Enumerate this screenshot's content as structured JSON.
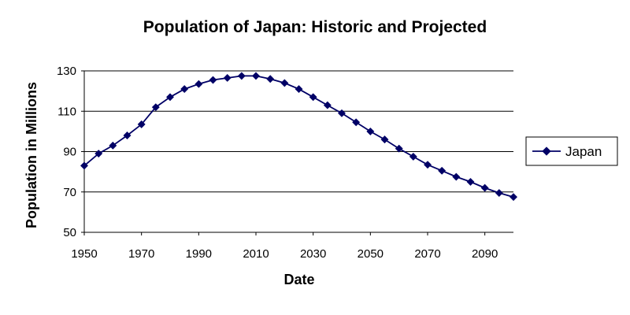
{
  "chart_data": {
    "type": "line",
    "title": "Population of Japan: Historic and Projected",
    "xlabel": "Date",
    "ylabel": "Population in Millions",
    "xlim": [
      1950,
      2100
    ],
    "ylim": [
      50,
      130
    ],
    "x_ticks": [
      "1950",
      "1970",
      "1990",
      "2010",
      "2030",
      "2050",
      "2070",
      "2090"
    ],
    "y_ticks": [
      "50",
      "70",
      "90",
      "110",
      "130"
    ],
    "grid": true,
    "legend_position": "right",
    "colors": {
      "series": "#000066",
      "grid": "#000000"
    },
    "series": [
      {
        "name": "Japan",
        "x": [
          1950,
          1955,
          1960,
          1965,
          1970,
          1975,
          1980,
          1985,
          1990,
          1995,
          2000,
          2005,
          2010,
          2015,
          2020,
          2025,
          2030,
          2035,
          2040,
          2045,
          2050,
          2055,
          2060,
          2065,
          2070,
          2075,
          2080,
          2085,
          2090,
          2095,
          2100
        ],
        "y": [
          83,
          89,
          93,
          98,
          103.5,
          112,
          117,
          121,
          123.5,
          125.5,
          126.5,
          127.5,
          127.5,
          126,
          124,
          121,
          117,
          113,
          109,
          104.5,
          100,
          96,
          91.5,
          87.5,
          83.5,
          80.5,
          77.5,
          75,
          72,
          69.5,
          67.5
        ]
      }
    ]
  }
}
